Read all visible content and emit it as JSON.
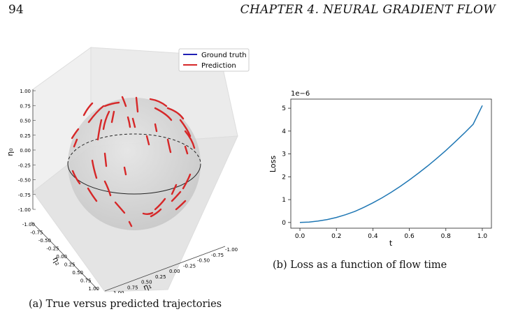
{
  "page": {
    "number": "94",
    "chapter": "CHAPTER 4.  NEURAL GRADIENT FLOW"
  },
  "figure_a": {
    "caption": "(a)  True versus predicted trajectories",
    "legend": [
      {
        "name": "Ground truth",
        "color": "#1f1fb4"
      },
      {
        "name": "Prediction",
        "color": "#d62728"
      }
    ],
    "z_axis_label": "η₀",
    "x_axis_label": "η₁",
    "y_axis_label": "η₂",
    "z_ticks": [
      "1.00",
      "0.75",
      "0.50",
      "0.25",
      "0.00",
      "-0.25",
      "-0.50",
      "-0.75",
      "-1.00"
    ],
    "x_ticks": [
      "1.00",
      "0.75",
      "0.50",
      "0.25",
      "0.00",
      "-0.25",
      "-0.50",
      "-0.75",
      "-1.00"
    ],
    "y_ticks": [
      "-1.00",
      "-0.75",
      "-0.50",
      "-0.25",
      "0.00",
      "0.25",
      "0.50",
      "0.75",
      "1.00"
    ]
  },
  "figure_b": {
    "caption": "(b)  Loss as a function of flow time",
    "ylabel": "Loss",
    "xlabel": "t",
    "offset_text": "1e−6"
  },
  "chart_data": {
    "type": "line",
    "title": "",
    "xlabel": "t",
    "ylabel": "Loss",
    "y_scale_factor": "1e-6",
    "xlim": [
      -0.05,
      1.05
    ],
    "ylim": [
      -0.25,
      5.4
    ],
    "x_ticks": [
      0.0,
      0.2,
      0.4,
      0.6,
      0.8,
      1.0
    ],
    "y_ticks": [
      0,
      1,
      2,
      3,
      4,
      5
    ],
    "grid": false,
    "color": "#1f77b4",
    "x": [
      0.0,
      0.05,
      0.1,
      0.15,
      0.2,
      0.25,
      0.3,
      0.35,
      0.4,
      0.45,
      0.5,
      0.55,
      0.6,
      0.65,
      0.7,
      0.75,
      0.8,
      0.85,
      0.9,
      0.95,
      1.0
    ],
    "y": [
      0.0,
      0.02,
      0.06,
      0.13,
      0.22,
      0.34,
      0.48,
      0.66,
      0.86,
      1.08,
      1.32,
      1.58,
      1.86,
      2.16,
      2.47,
      2.8,
      3.15,
      3.52,
      3.9,
      4.3,
      5.12
    ]
  }
}
